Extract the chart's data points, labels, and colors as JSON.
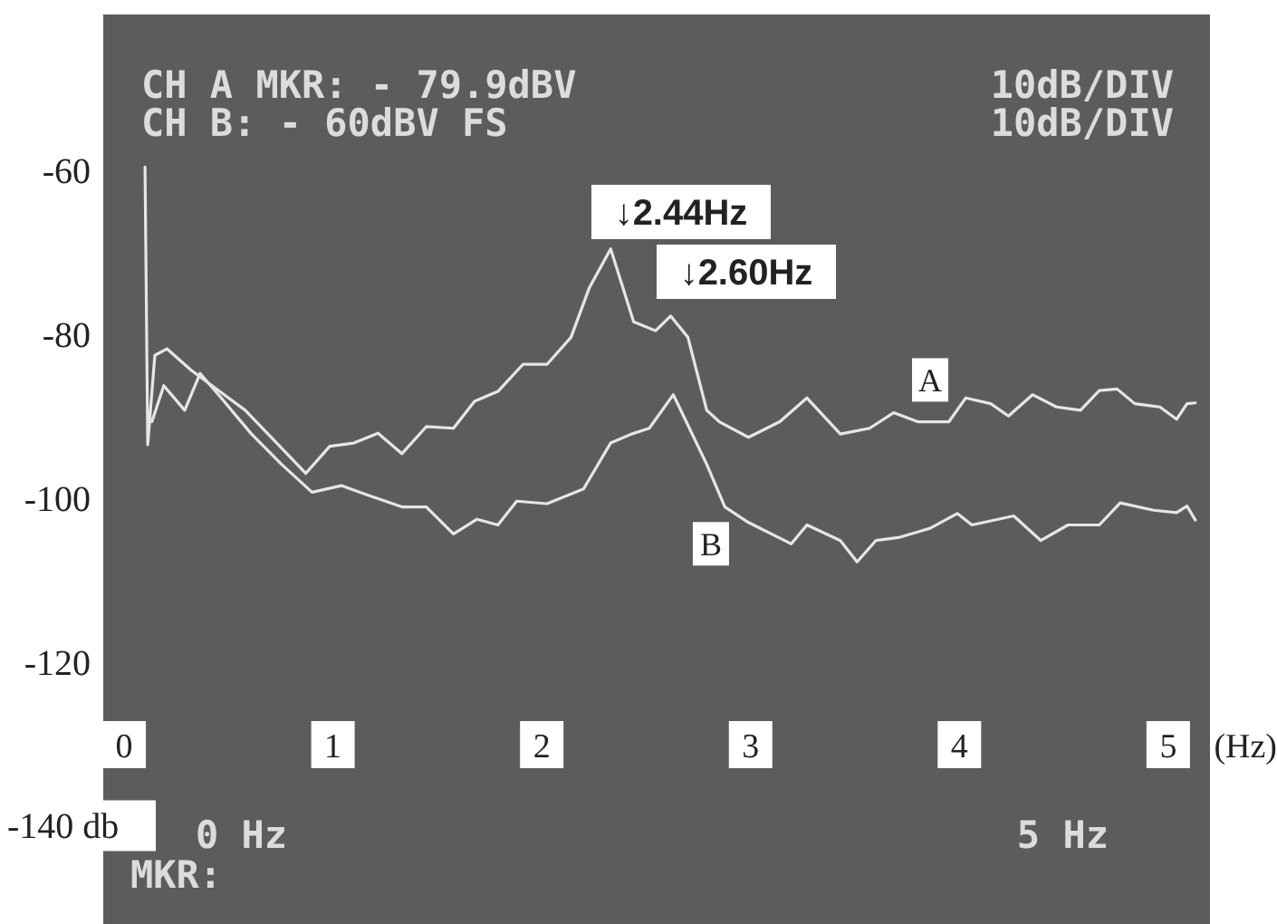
{
  "chart_data": {
    "type": "line",
    "xlabel": "(Hz)",
    "xlim": [
      -0.1,
      5.2
    ],
    "ylim": [
      -152,
      -41
    ],
    "xticks": [
      0,
      1,
      2,
      3,
      4,
      5
    ],
    "yticks": [
      -60,
      -80,
      -100,
      -120,
      {
        "value": -140,
        "label": "-140 db"
      }
    ],
    "grid": false,
    "marker": "none",
    "line_style": "solid",
    "series": [
      {
        "color": "#e6e6e6",
        "x": [
          0.1,
          0.113,
          0.147,
          0.205,
          0.32,
          0.58,
          0.87,
          0.985,
          1.1,
          1.216,
          1.33,
          1.447,
          1.577,
          1.678,
          1.79,
          1.91,
          2.025,
          2.14,
          2.227,
          2.33,
          2.44,
          2.545,
          2.617,
          2.7,
          2.79,
          2.85,
          2.99,
          3.14,
          3.27,
          3.43,
          3.57,
          3.685,
          3.8,
          3.95,
          4.03,
          4.15,
          4.235,
          4.35,
          4.465,
          4.58,
          4.67,
          4.755,
          4.84,
          4.96,
          5.04,
          5.09,
          5.13
        ],
        "values": [
          -59.6,
          -93.5,
          -82.6,
          -81.8,
          -84.4,
          -89.3,
          -97,
          -93.7,
          -93.3,
          -92.1,
          -94.6,
          -91.3,
          -91.5,
          -88.2,
          -87,
          -83.7,
          -83.7,
          -80.4,
          -74.4,
          -69.6,
          -78.5,
          -79.6,
          -77.8,
          -80.4,
          -89.3,
          -90.7,
          -92.6,
          -90.7,
          -87.8,
          -92.2,
          -91.5,
          -89.6,
          -90.7,
          -90.7,
          -87.8,
          -88.5,
          -90,
          -87.4,
          -88.9,
          -89.3,
          -86.9,
          -86.7,
          -88.5,
          -88.9,
          -90.4,
          -88.5,
          -88.4
        ]
      },
      {
        "color": "#e6e6e6",
        "x": [
          0.133,
          0.19,
          0.29,
          0.364,
          0.465,
          0.61,
          0.754,
          0.9,
          1.04,
          1.16,
          1.33,
          1.447,
          1.577,
          1.69,
          1.79,
          1.88,
          2.025,
          2.2,
          2.33,
          2.43,
          2.515,
          2.63,
          2.79,
          2.877,
          2.99,
          3.195,
          3.27,
          3.43,
          3.51,
          3.6,
          3.715,
          3.86,
          3.99,
          4.06,
          4.26,
          4.39,
          4.52,
          4.67,
          4.77,
          4.93,
          5.04,
          5.09,
          5.13
        ],
        "values": [
          -90.7,
          -86.3,
          -89.3,
          -84.8,
          -87.8,
          -92.2,
          -95.9,
          -99.3,
          -98.5,
          -99.6,
          -101.1,
          -101.1,
          -104.4,
          -102.6,
          -103.3,
          -100.4,
          -100.7,
          -98.9,
          -93.3,
          -92.2,
          -91.5,
          -87.4,
          -95.9,
          -101.1,
          -103,
          -105.6,
          -103.3,
          -105.2,
          -107.8,
          -105.2,
          -104.8,
          -103.7,
          -101.9,
          -103.3,
          -102.2,
          -105.2,
          -103.3,
          -103.3,
          -100.6,
          -101.5,
          -101.8,
          -101,
          -102.7
        ]
      }
    ],
    "annotations": [
      "CH A MKR: - 79.9dBV",
      "10dB/DIV",
      "CH B: - 60dBV  FS",
      "10dB/DIV",
      "0 Hz",
      "5 Hz",
      "MKR:",
      "↓2.44Hz",
      "↓2.60Hz",
      {
        "text": "A",
        "x": 3.86,
        "y": -85.6
      },
      {
        "text": "B",
        "x": 2.81,
        "y": -105.6
      }
    ]
  }
}
